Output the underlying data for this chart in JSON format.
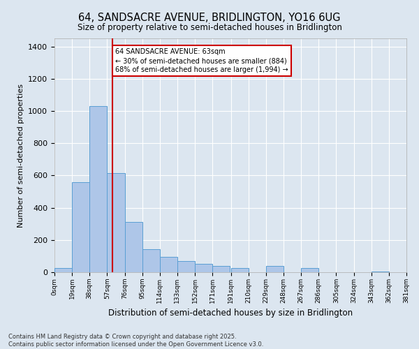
{
  "title1": "64, SANDSACRE AVENUE, BRIDLINGTON, YO16 6UG",
  "title2": "Size of property relative to semi-detached houses in Bridlington",
  "xlabel": "Distribution of semi-detached houses by size in Bridlington",
  "ylabel": "Number of semi-detached properties",
  "footnote": "Contains HM Land Registry data © Crown copyright and database right 2025.\nContains public sector information licensed under the Open Government Licence v3.0.",
  "bin_labels": [
    "0sqm",
    "19sqm",
    "38sqm",
    "57sqm",
    "76sqm",
    "95sqm",
    "114sqm",
    "133sqm",
    "152sqm",
    "171sqm",
    "191sqm",
    "210sqm",
    "229sqm",
    "248sqm",
    "267sqm",
    "286sqm",
    "305sqm",
    "324sqm",
    "343sqm",
    "362sqm",
    "381sqm"
  ],
  "bar_values": [
    25,
    560,
    1030,
    615,
    310,
    145,
    95,
    70,
    50,
    40,
    25,
    0,
    40,
    0,
    25,
    0,
    0,
    0,
    5,
    0,
    0
  ],
  "bin_edges": [
    0,
    19,
    38,
    57,
    76,
    95,
    114,
    133,
    152,
    171,
    191,
    210,
    229,
    248,
    267,
    286,
    305,
    324,
    343,
    362,
    381
  ],
  "property_size": 63,
  "bar_color": "#aec6e8",
  "bar_edge_color": "#5a9fd4",
  "red_line_color": "#cc0000",
  "annotation_text": "64 SANDSACRE AVENUE: 63sqm\n← 30% of semi-detached houses are smaller (884)\n68% of semi-detached houses are larger (1,994) →",
  "annotation_box_color": "#ffffff",
  "annotation_box_edge": "#cc0000",
  "bg_color": "#dce6f0",
  "ylim": [
    0,
    1450
  ],
  "yticks": [
    0,
    200,
    400,
    600,
    800,
    1000,
    1200,
    1400
  ]
}
